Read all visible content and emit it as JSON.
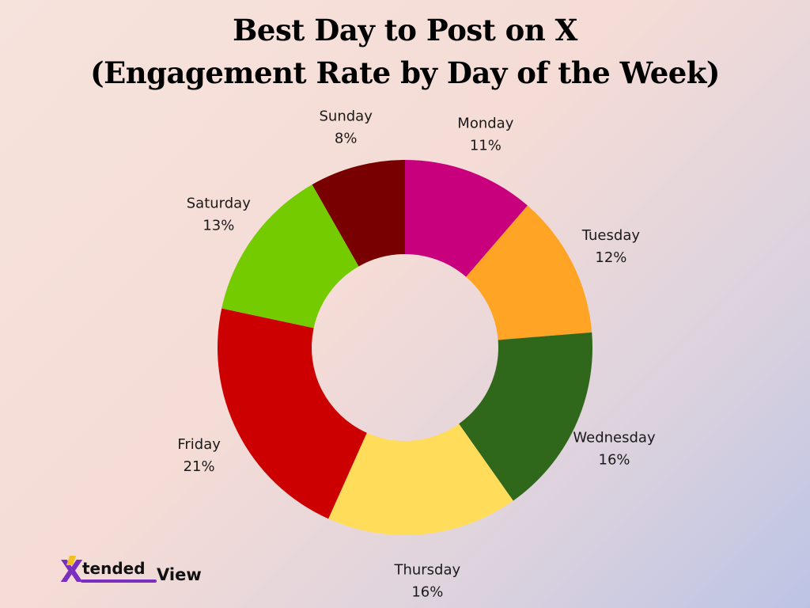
{
  "chart_data": {
    "type": "pie",
    "title": "Best Day to Post on X",
    "subtitle": "(Engagement Rate by Day of the Week)",
    "donut": true,
    "start_angle_deg": 0,
    "direction": "clockwise",
    "categories": [
      "Monday",
      "Tuesday",
      "Wednesday",
      "Thursday",
      "Friday",
      "Saturday",
      "Sunday"
    ],
    "values": [
      11,
      12,
      16,
      16,
      21,
      13,
      8
    ],
    "value_labels": [
      "11%",
      "12%",
      "16%",
      "16%",
      "21%",
      "13%",
      "8%"
    ],
    "colors": [
      "#c8007e",
      "#ffa424",
      "#2f671b",
      "#ffdc5a",
      "#cc0000",
      "#74cb00",
      "#780000"
    ],
    "unit": "%"
  },
  "logo": {
    "mark": "X",
    "text_a": "tended",
    "text_b": "View"
  }
}
